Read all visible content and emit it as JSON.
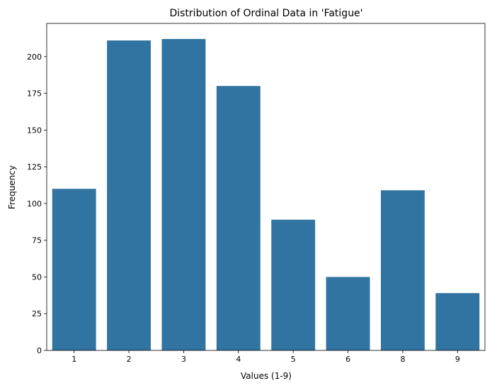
{
  "chart_data": {
    "type": "bar",
    "title": "Distribution of Ordinal Data in 'Fatigue'",
    "xlabel": "Values (1-9)",
    "ylabel": "Frequency",
    "categories": [
      "1",
      "2",
      "3",
      "4",
      "5",
      "6",
      "8",
      "9"
    ],
    "values": [
      110,
      211,
      212,
      180,
      89,
      50,
      109,
      39
    ],
    "ylim": [
      0,
      222.6
    ],
    "yticks": [
      0,
      25,
      50,
      75,
      100,
      125,
      150,
      175,
      200
    ],
    "bar_color": "#3274a1",
    "grid": false,
    "legend": "none"
  }
}
